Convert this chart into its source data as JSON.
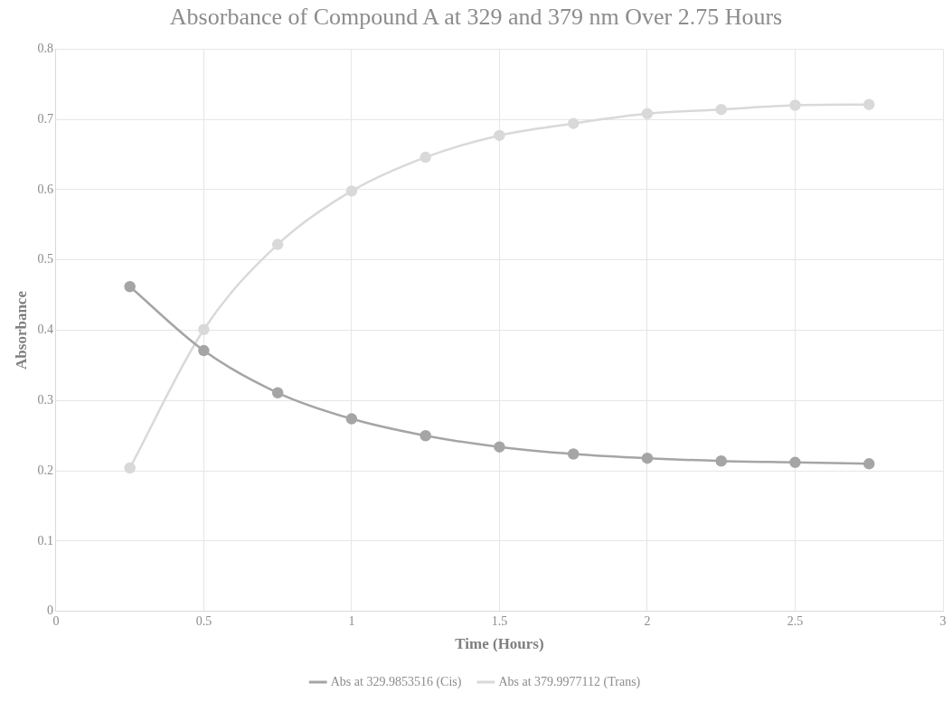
{
  "chart_data": {
    "type": "line",
    "title": "Absorbance of Compound A at 329 and 379 nm Over 2.75 Hours",
    "xlabel": "Time (Hours)",
    "ylabel": "Absorbance",
    "x": [
      0.25,
      0.5,
      0.75,
      1,
      1.25,
      1.5,
      1.75,
      2,
      2.25,
      2.5,
      2.75
    ],
    "series": [
      {
        "name": "Abs at 329.9853516 (Cis)",
        "color": "#a5a5a5",
        "values": [
          0.462,
          0.371,
          0.311,
          0.274,
          0.25,
          0.234,
          0.224,
          0.218,
          0.214,
          0.212,
          0.21
        ]
      },
      {
        "name": "Abs at 379.9977112 (Trans)",
        "color": "#d9d9d9",
        "values": [
          0.204,
          0.401,
          0.522,
          0.598,
          0.646,
          0.677,
          0.694,
          0.708,
          0.714,
          0.72,
          0.721
        ]
      }
    ],
    "xlim": [
      0,
      3
    ],
    "xticks": [
      0,
      0.5,
      1,
      1.5,
      2,
      2.5,
      3
    ],
    "ylim": [
      0,
      0.8
    ],
    "yticks": [
      0,
      0.1,
      0.2,
      0.3,
      0.4,
      0.5,
      0.6,
      0.7,
      0.8
    ],
    "grid": true,
    "legend": "bottom",
    "marker": "circle",
    "line_style": "solid"
  }
}
